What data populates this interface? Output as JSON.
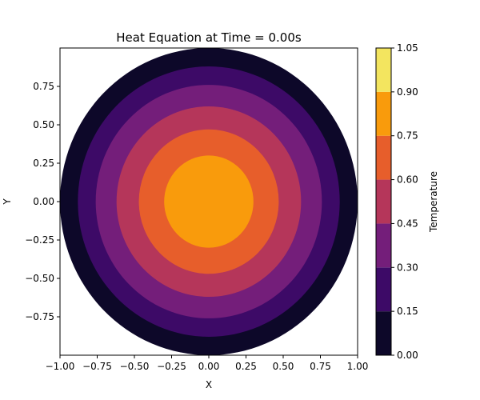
{
  "chart_data": {
    "type": "heatmap",
    "subtype": "filled-contour",
    "title": "Heat Equation at Time = 0.00s",
    "xlabel": "X",
    "ylabel": "Y",
    "xlim": [
      -1.0,
      1.0
    ],
    "ylim": [
      -1.0,
      1.0
    ],
    "x_ticks": [
      "−1.00",
      "−0.75",
      "−0.50",
      "−0.25",
      "0.00",
      "0.25",
      "0.50",
      "0.75",
      "1.00"
    ],
    "x_tick_values": [
      -1.0,
      -0.75,
      -0.5,
      -0.25,
      0.0,
      0.25,
      0.5,
      0.75,
      1.0
    ],
    "y_ticks": [
      "−0.75",
      "−0.50",
      "−0.25",
      "0.00",
      "0.25",
      "0.50",
      "0.75"
    ],
    "y_tick_values": [
      -0.75,
      -0.5,
      -0.25,
      0.0,
      0.25,
      0.5,
      0.75
    ],
    "domain_radius": 1.0,
    "colormap": "inferno",
    "colorbar": {
      "label": "Temperature",
      "levels": [
        0.0,
        0.15,
        0.3,
        0.45,
        0.6,
        0.75,
        0.9,
        1.05
      ],
      "tick_labels": [
        "0.00",
        "0.15",
        "0.30",
        "0.45",
        "0.60",
        "0.75",
        "0.90",
        "1.05"
      ],
      "colors": [
        "#0d0829",
        "#3d0a67",
        "#741e7a",
        "#b5365a",
        "#e75e2b",
        "#f99b0c",
        "#f3e55f"
      ]
    },
    "contour_band_radii": [
      1.0,
      0.88,
      0.76,
      0.62,
      0.47,
      0.3
    ],
    "grid": false,
    "legend": "right"
  }
}
